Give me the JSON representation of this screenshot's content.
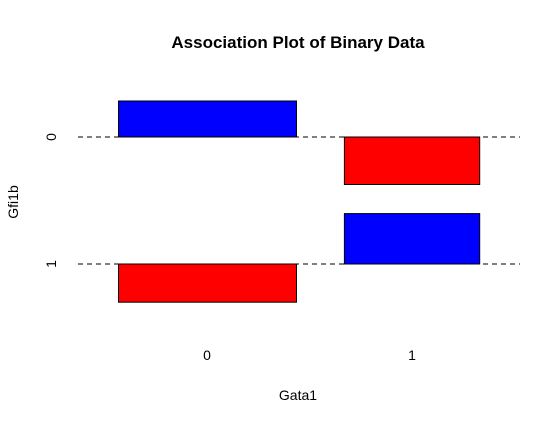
{
  "chart_data": {
    "type": "association",
    "title": "Association Plot of Binary Data",
    "xlabel": "Gata1",
    "ylabel": "Gfi1b",
    "x_categories": [
      "0",
      "1"
    ],
    "y_categories": [
      "0",
      "1"
    ],
    "colors": {
      "positive": "#0000ff",
      "negative": "#ff0000"
    },
    "cells": [
      {
        "x": "0",
        "y": "0",
        "residual": 1.0,
        "width": 1.0
      },
      {
        "x": "1",
        "y": "0",
        "residual": -1.32,
        "width": 0.76
      },
      {
        "x": "0",
        "y": "1",
        "residual": -1.06,
        "width": 1.0
      },
      {
        "x": "1",
        "y": "1",
        "residual": 1.4,
        "width": 0.76
      }
    ]
  }
}
